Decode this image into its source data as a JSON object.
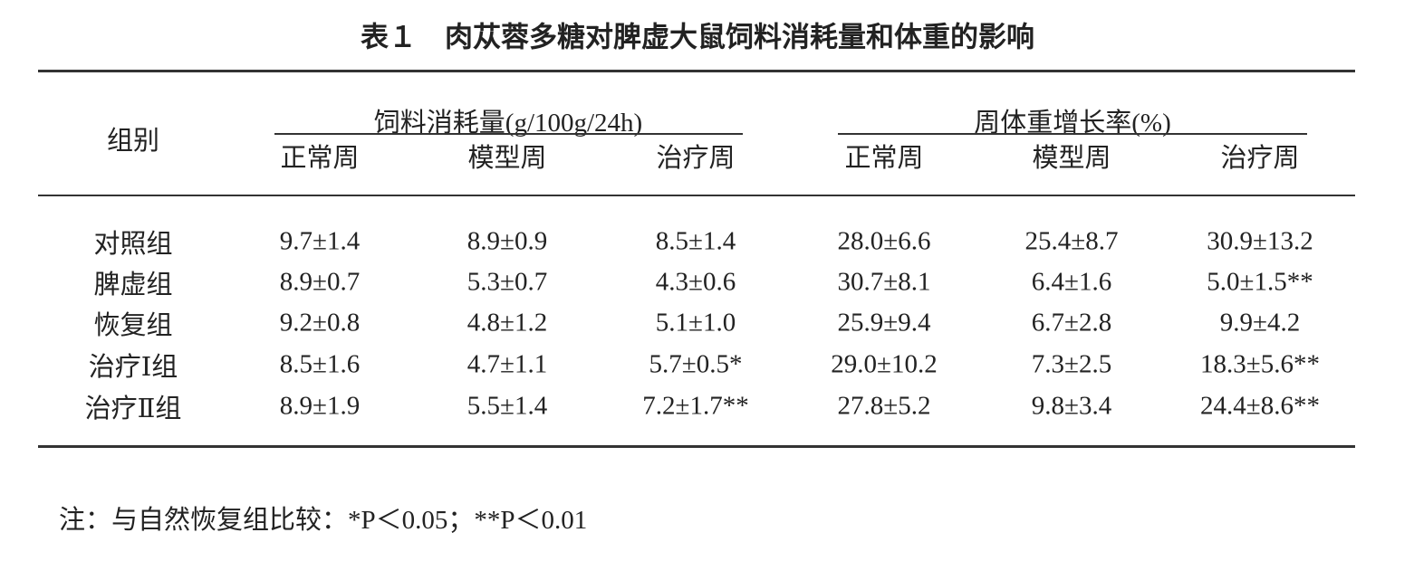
{
  "title": "表１　肉苁蓉多糖对脾虚大鼠饲料消耗量和体重的影响",
  "table": {
    "row_header": "组别",
    "groups": [
      "饲料消耗量(g/100g/24h)",
      "周体重增长率(%)"
    ],
    "columns": [
      "正常周",
      "模型周",
      "治疗周",
      "正常周",
      "模型周",
      "治疗周"
    ],
    "rows": [
      [
        "对照组",
        "9.7±1.4",
        "8.9±0.9",
        "8.5±1.4",
        "28.0±6.6",
        "25.4±8.7",
        "30.9±13.2"
      ],
      [
        "脾虚组",
        "8.9±0.7",
        "5.3±0.7",
        "4.3±0.6",
        "30.7±8.1",
        "6.4±1.6",
        "5.0±1.5**"
      ],
      [
        "恢复组",
        "9.2±0.8",
        "4.8±1.2",
        "5.1±1.0",
        "25.9±9.4",
        "6.7±2.8",
        "9.9±4.2"
      ],
      [
        "治疗Ⅰ组",
        "8.5±1.6",
        "4.7±1.1",
        "5.7±0.5*",
        "29.0±10.2",
        "7.3±2.5",
        "18.3±5.6**"
      ],
      [
        "治疗Ⅱ组",
        "8.9±1.9",
        "5.5±1.4",
        "7.2±1.7**",
        "27.8±5.2",
        "9.8±3.4",
        "24.4±8.6**"
      ]
    ]
  },
  "note": "注：与自然恢复组比较：*P＜0.05；**P＜0.01"
}
